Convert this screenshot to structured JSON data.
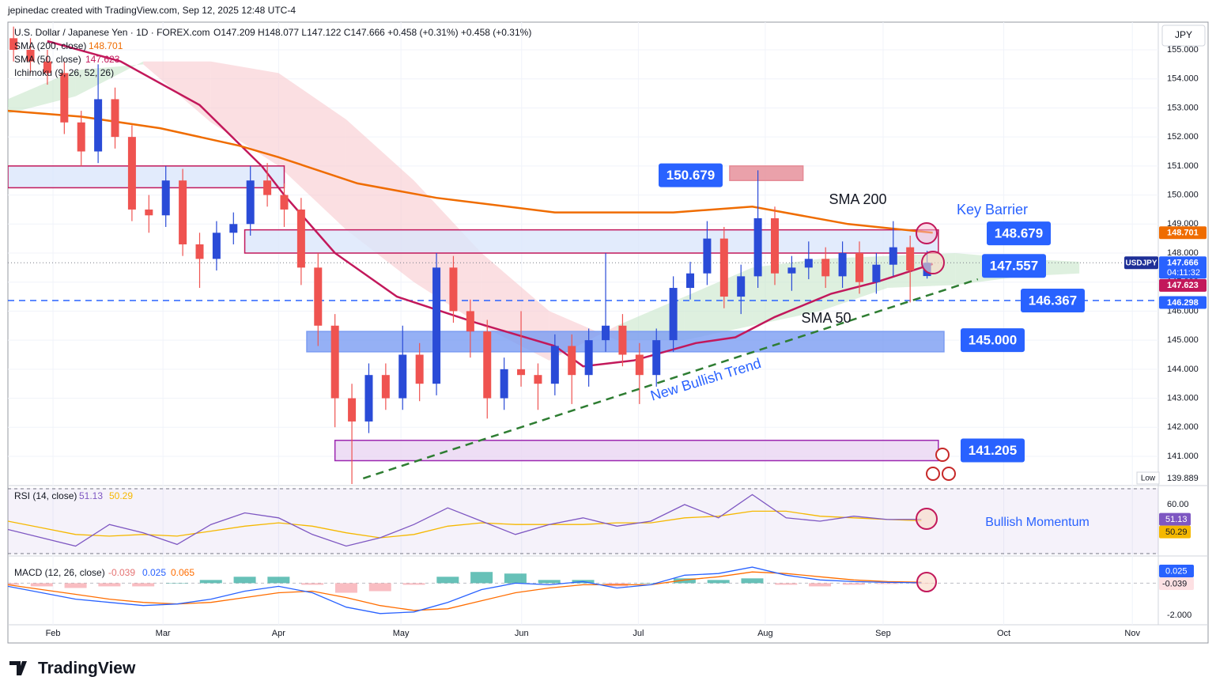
{
  "header": {
    "attribution": "jepinedac created with TradingView.com, Sep 12, 2025 12:48 UTC-4",
    "logo": "TradingView"
  },
  "chart_data": {
    "type": "candlestick",
    "title": "U.S. Dollar / Japanese Yen · 1D · FOREX.com",
    "quote": "O147.209  H148.077  L147.122  C147.666  +0.458 (+0.31%)  +0.458 (+0.31%)",
    "currency": "JPY",
    "symbol": "USDJPY",
    "countdown": "04:11:32",
    "low_label": "Low",
    "up_color": "#2a4bd7",
    "down_color": "#ef5350",
    "xlim": [
      0,
      204
    ],
    "xticks": [
      {
        "value": 8,
        "label": "Feb"
      },
      {
        "value": 27.5,
        "label": "Mar"
      },
      {
        "value": 48,
        "label": "Apr"
      },
      {
        "value": 69.7,
        "label": "May"
      },
      {
        "value": 91.1,
        "label": "Jun"
      },
      {
        "value": 111.8,
        "label": "Jul"
      },
      {
        "value": 134.3,
        "label": "Aug"
      },
      {
        "value": 155.2,
        "label": "Sep"
      },
      {
        "value": 176.6,
        "label": "Oct"
      },
      {
        "value": 199.4,
        "label": "Nov"
      }
    ],
    "ylim": [
      140,
      156
    ],
    "yticks": [
      {
        "value": 141,
        "label": "141.000"
      },
      {
        "value": 142,
        "label": "142.000"
      },
      {
        "value": 143,
        "label": "143.000"
      },
      {
        "value": 144,
        "label": "144.000"
      },
      {
        "value": 145,
        "label": "145.000"
      },
      {
        "value": 146,
        "label": "146.000"
      },
      {
        "value": 147,
        "label": "147.000"
      },
      {
        "value": 148,
        "label": "148.000"
      },
      {
        "value": 149,
        "label": "149.000"
      },
      {
        "value": 150,
        "label": "150.000"
      },
      {
        "value": 151,
        "label": "151.000"
      },
      {
        "value": 152,
        "label": "152.000"
      },
      {
        "value": 153,
        "label": "153.000"
      },
      {
        "value": 154,
        "label": "154.000"
      },
      {
        "value": 155,
        "label": "155.000"
      }
    ],
    "grid": true,
    "x": [
      1,
      4,
      7,
      10,
      13,
      16,
      19,
      22,
      25,
      28,
      31,
      34,
      37,
      40,
      43,
      46,
      49,
      52,
      55,
      58,
      61,
      64,
      67,
      70,
      73,
      76,
      79,
      82,
      85,
      88,
      91,
      94,
      97,
      100,
      103,
      106,
      109,
      112,
      115,
      118,
      121,
      124,
      127,
      130,
      133,
      136,
      139,
      142,
      145,
      148,
      151,
      154,
      157,
      160,
      163
    ],
    "open": [
      155.4,
      155.0,
      154.6,
      154.2,
      152.5,
      151.5,
      153.3,
      152.0,
      149.5,
      149.3,
      150.5,
      148.3,
      147.8,
      148.7,
      149.0,
      150.5,
      150.0,
      149.5,
      147.5,
      145.5,
      143.0,
      142.2,
      143.8,
      143.0,
      144.5,
      143.5,
      147.5,
      146.0,
      145.3,
      143.0,
      144.0,
      143.8,
      143.5,
      144.8,
      143.8,
      145.0,
      145.5,
      144.5,
      143.8,
      145.0,
      146.8,
      147.3,
      148.5,
      146.5,
      147.2,
      149.2,
      147.3,
      147.5,
      147.8,
      147.2,
      148.0,
      147.0,
      147.6,
      148.2,
      147.209
    ],
    "high": [
      155.8,
      155.4,
      155.0,
      154.6,
      152.9,
      154.5,
      153.7,
      152.4,
      150.0,
      151.0,
      150.9,
      148.7,
      149.1,
      149.4,
      151.0,
      151.1,
      150.4,
      149.9,
      148.0,
      145.9,
      143.5,
      144.2,
      144.2,
      145.5,
      144.9,
      148.0,
      147.9,
      146.4,
      145.7,
      144.4,
      146.0,
      144.2,
      145.2,
      145.2,
      145.4,
      148.0,
      145.9,
      144.9,
      145.4,
      147.2,
      147.7,
      149.1,
      148.9,
      147.6,
      150.85,
      149.6,
      147.9,
      148.4,
      148.2,
      148.4,
      148.4,
      148.0,
      149.1,
      148.6,
      148.077
    ],
    "low": [
      154.6,
      154.2,
      153.8,
      152.1,
      151.0,
      151.1,
      151.6,
      149.1,
      148.7,
      148.9,
      147.9,
      146.8,
      147.4,
      148.3,
      148.6,
      149.6,
      148.9,
      146.9,
      144.8,
      142.0,
      139.889,
      141.8,
      142.6,
      142.6,
      142.9,
      143.1,
      145.6,
      144.4,
      142.3,
      142.6,
      143.4,
      142.6,
      143.1,
      142.8,
      143.4,
      144.6,
      144.1,
      142.8,
      143.4,
      144.6,
      146.4,
      146.9,
      146.1,
      145.9,
      146.8,
      146.9,
      146.7,
      147.1,
      146.8,
      146.8,
      146.6,
      146.6,
      147.2,
      146.3,
      147.122
    ],
    "close": [
      155.0,
      154.6,
      154.2,
      152.5,
      151.5,
      153.3,
      152.0,
      149.5,
      149.3,
      150.5,
      148.3,
      147.8,
      148.7,
      149.0,
      150.5,
      150.0,
      149.5,
      147.5,
      145.5,
      143.0,
      142.2,
      143.8,
      143.0,
      144.5,
      143.5,
      147.5,
      146.0,
      145.3,
      143.0,
      144.0,
      143.8,
      143.5,
      144.8,
      143.8,
      145.0,
      145.5,
      144.5,
      143.8,
      145.0,
      146.8,
      147.3,
      148.5,
      146.5,
      147.2,
      149.2,
      147.3,
      147.5,
      147.8,
      147.2,
      148.0,
      147.0,
      147.6,
      148.2,
      147.4,
      147.666
    ],
    "series": [
      {
        "name": "SMA (50, close)",
        "color": "#c2185b",
        "x": [
          7,
          20,
          34,
          45,
          49,
          58,
          69,
          83,
          97,
          102,
          111,
          122,
          129,
          136,
          146,
          154,
          164
        ],
        "values": [
          155.3,
          154.6,
          153.1,
          151.0,
          150.0,
          148.0,
          146.5,
          145.6,
          144.8,
          144.1,
          144.3,
          144.9,
          145.1,
          145.8,
          146.6,
          147.0,
          147.623
        ]
      },
      {
        "name": "SMA (200, close)",
        "color": "#ef6c00",
        "x": [
          0,
          13,
          27,
          41,
          48,
          62,
          76,
          97,
          118,
          132,
          149,
          164
        ],
        "values": [
          152.9,
          152.7,
          152.3,
          151.7,
          151.3,
          150.4,
          149.9,
          149.4,
          149.4,
          149.6,
          149.0,
          148.701
        ]
      }
    ],
    "cloud": {
      "name": "Ichimoku (9, 26, 52, 26)",
      "bull_color": "#c8e6c9",
      "bear_color": "#f8c9cf",
      "x": [
        0,
        12,
        24,
        36,
        48,
        60,
        72,
        84,
        96,
        108,
        120,
        132,
        144,
        156,
        168,
        180,
        190
      ],
      "span_a": [
        153.3,
        154.3,
        154.5,
        152.5,
        151.0,
        148.8,
        147.0,
        145.5,
        144.3,
        145.5,
        146.5,
        147.5,
        147.8,
        147.9,
        148.0,
        147.8,
        147.7
      ],
      "span_b": [
        152.8,
        153.4,
        154.6,
        154.6,
        154.2,
        152.6,
        150.5,
        148.0,
        146.0,
        145.0,
        145.0,
        145.5,
        146.0,
        146.8,
        146.9,
        147.2,
        147.3
      ]
    },
    "zones": [
      {
        "range": [
          150.25,
          151.0
        ],
        "span": [
          0,
          49
        ],
        "fill": "#dbe6fb",
        "stroke": "#c2185b"
      },
      {
        "range": [
          148.0,
          148.8
        ],
        "span": [
          42,
          165
        ],
        "fill": "#dbe6fb",
        "stroke": "#c2185b"
      },
      {
        "range": [
          144.6,
          145.3
        ],
        "span": [
          53,
          166
        ],
        "fill": "#7b9cf2",
        "stroke": "#7b9cf2"
      },
      {
        "range": [
          140.85,
          141.55
        ],
        "span": [
          58,
          165
        ],
        "fill": "#ead6f2",
        "stroke": "#9c27b0"
      },
      {
        "range": [
          150.5,
          151.0
        ],
        "span": [
          128,
          141
        ],
        "fill": "#e58a95",
        "stroke": "#e58a95"
      }
    ],
    "levels": [
      {
        "value": 150.679,
        "label": "150.679"
      },
      {
        "value": 148.679,
        "label": "148.679"
      },
      {
        "value": 147.557,
        "label": "147.557"
      },
      {
        "value": 146.367,
        "label": "146.367"
      },
      {
        "value": 145.0,
        "label": "145.000"
      },
      {
        "value": 141.205,
        "label": "141.205"
      }
    ],
    "price_tags": [
      {
        "value": 146.298,
        "color": "#2962ff"
      }
    ],
    "trendline": {
      "label": "New Bullish Trend",
      "x": [
        63,
        172
      ],
      "values": [
        140.24,
        147.1
      ],
      "color": "#2e7d32"
    },
    "annotations": [
      "SMA 200",
      "SMA 50",
      "Key Barrier"
    ],
    "rsi": {
      "title": "RSI (14, close)",
      "label": "Bullish Momentum",
      "ylim": [
        30,
        70
      ],
      "yticks": [
        {
          "value": 60,
          "label": "60.00"
        }
      ],
      "x": [
        0,
        6,
        12,
        18,
        24,
        30,
        36,
        42,
        48,
        54,
        60,
        66,
        72,
        78,
        84,
        90,
        96,
        102,
        108,
        114,
        120,
        126,
        132,
        138,
        144,
        150,
        156,
        162
      ],
      "rsi": [
        45,
        40,
        35,
        48,
        43,
        36,
        48,
        55,
        52,
        42,
        35,
        40,
        48,
        58,
        50,
        42,
        48,
        52,
        47,
        50,
        60,
        52,
        66,
        52,
        50,
        53,
        51,
        51.13
      ],
      "ma": [
        50,
        46,
        42,
        41,
        42,
        41,
        44,
        47,
        49,
        47,
        43,
        40,
        42,
        47,
        49,
        48,
        48,
        48,
        49,
        49,
        52,
        53,
        56,
        56,
        53,
        52,
        51,
        50.29
      ],
      "rsi_color": "#7e57c2",
      "ma_color": "#f5b800"
    },
    "macd": {
      "title": "MACD (12, 26, close)",
      "ylim": [
        -2.6,
        1.6
      ],
      "yticks": [
        {
          "value": -2,
          "label": "-2.000"
        }
      ],
      "x": [
        0,
        6,
        12,
        18,
        24,
        30,
        36,
        42,
        48,
        54,
        60,
        66,
        72,
        78,
        84,
        90,
        96,
        102,
        108,
        114,
        120,
        126,
        132,
        138,
        144,
        150,
        156,
        162
      ],
      "macd": [
        -0.2,
        -0.6,
        -1.0,
        -1.2,
        -1.4,
        -1.3,
        -1.0,
        -0.5,
        -0.2,
        -0.6,
        -1.5,
        -1.9,
        -1.8,
        -1.2,
        -0.4,
        0.0,
        -0.1,
        0.1,
        -0.3,
        -0.1,
        0.5,
        0.6,
        1.0,
        0.5,
        0.2,
        0.1,
        0.05,
        0.025
      ],
      "signal": [
        -0.1,
        -0.4,
        -0.7,
        -1.0,
        -1.2,
        -1.3,
        -1.2,
        -0.9,
        -0.6,
        -0.5,
        -0.9,
        -1.4,
        -1.7,
        -1.6,
        -1.1,
        -0.6,
        -0.3,
        -0.1,
        -0.1,
        -0.1,
        0.2,
        0.4,
        0.7,
        0.6,
        0.4,
        0.2,
        0.1,
        0.065
      ],
      "histogram": [
        -0.1,
        -0.2,
        -0.3,
        -0.2,
        -0.2,
        0,
        0.2,
        0.4,
        0.4,
        -0.1,
        -0.6,
        -0.5,
        -0.1,
        0.4,
        0.7,
        0.6,
        0.2,
        0.2,
        -0.2,
        0,
        0.3,
        0.2,
        0.3,
        -0.1,
        -0.2,
        -0.1,
        -0.05,
        -0.039
      ],
      "macd_color": "#2962ff",
      "signal_color": "#ff6d00",
      "up_color": "#26a69a",
      "down_color": "#f7a1a8"
    }
  }
}
